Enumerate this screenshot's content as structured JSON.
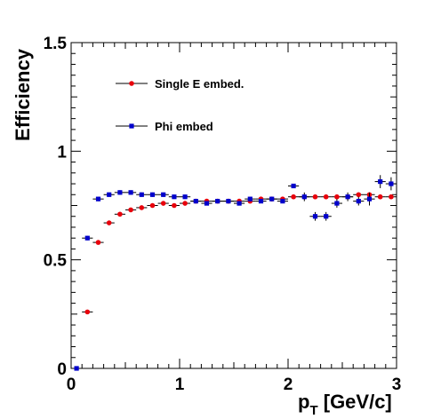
{
  "chart_data": {
    "type": "scatter",
    "title": "",
    "xlabel": "p",
    "xlabel_subscript": "T",
    "xlabel_unit": " [GeV/c]",
    "ylabel": "Efficiency",
    "xlim": [
      0,
      3
    ],
    "ylim": [
      0,
      1.5
    ],
    "x_ticks": [
      0,
      1,
      2,
      3
    ],
    "x_tick_labels": [
      "0",
      "1",
      "2",
      "3"
    ],
    "y_ticks": [
      0,
      0.5,
      1,
      1.5
    ],
    "y_tick_labels": [
      "0",
      "0.5",
      "1",
      "1.5"
    ],
    "grid": false,
    "legend_position": "top-left",
    "series": [
      {
        "name": "Single E embed.",
        "color": "#e8000b",
        "marker": "circle",
        "x": [
          0.15,
          0.25,
          0.35,
          0.45,
          0.55,
          0.65,
          0.75,
          0.85,
          0.95,
          1.05,
          1.15,
          1.25,
          1.35,
          1.45,
          1.55,
          1.65,
          1.75,
          1.85,
          1.95,
          2.05,
          2.15,
          2.25,
          2.35,
          2.45,
          2.55,
          2.65,
          2.75,
          2.85,
          2.95
        ],
        "y": [
          0.26,
          0.58,
          0.67,
          0.71,
          0.73,
          0.74,
          0.75,
          0.76,
          0.75,
          0.76,
          0.77,
          0.77,
          0.77,
          0.77,
          0.77,
          0.77,
          0.78,
          0.78,
          0.78,
          0.79,
          0.79,
          0.79,
          0.79,
          0.79,
          0.79,
          0.8,
          0.8,
          0.79,
          0.79
        ],
        "x_err": 0.05
      },
      {
        "name": "Phi embed",
        "color": "#0000cc",
        "marker": "square",
        "x": [
          0.05,
          0.15,
          0.25,
          0.35,
          0.45,
          0.55,
          0.65,
          0.75,
          0.85,
          0.95,
          1.05,
          1.15,
          1.25,
          1.35,
          1.45,
          1.55,
          1.65,
          1.75,
          1.85,
          1.95,
          2.05,
          2.15,
          2.25,
          2.35,
          2.45,
          2.55,
          2.65,
          2.75,
          2.85,
          2.95
        ],
        "y": [
          0.0,
          0.6,
          0.78,
          0.8,
          0.81,
          0.81,
          0.8,
          0.8,
          0.8,
          0.79,
          0.79,
          0.77,
          0.76,
          0.77,
          0.77,
          0.76,
          0.78,
          0.77,
          0.78,
          0.77,
          0.84,
          0.79,
          0.7,
          0.7,
          0.76,
          0.79,
          0.77,
          0.78,
          0.86,
          0.85
        ],
        "y_err": [
          0.0,
          0.01,
          0.01,
          0.01,
          0.01,
          0.01,
          0.01,
          0.01,
          0.01,
          0.01,
          0.01,
          0.01,
          0.01,
          0.01,
          0.01,
          0.01,
          0.01,
          0.01,
          0.01,
          0.01,
          0.01,
          0.02,
          0.02,
          0.02,
          0.02,
          0.02,
          0.02,
          0.03,
          0.03,
          0.03
        ],
        "x_err": 0.05
      }
    ]
  }
}
